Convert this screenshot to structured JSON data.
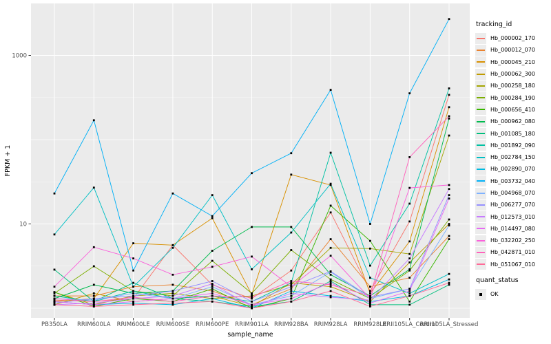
{
  "figure": {
    "background": "#FFFFFF",
    "panel_background": "#EBEBEB",
    "grid_color": "#FFFFFF",
    "tick_label_color": "#4D4D4D",
    "axis_title_color": "#000000"
  },
  "y_axis": {
    "title": "FPKM + 1",
    "scale": "log10",
    "major_ticks": [
      10,
      1000
    ],
    "major_tick_labels": [
      "10",
      "1000"
    ],
    "minor_gridlines": [
      1,
      100
    ]
  },
  "x_axis": {
    "title": "sample_name"
  },
  "legend": {
    "tracking_title": "tracking_id",
    "quant_title": "quant_status",
    "quant_item_label": "OK"
  },
  "chart_data": {
    "type": "line",
    "title": "",
    "xlabel": "sample_name",
    "ylabel": "FPKM + 1",
    "y_scale": "log10",
    "ylim": [
      1,
      4000
    ],
    "grid": true,
    "legend_position": "right",
    "point_shape": "filled-black-square (quant_status = OK)",
    "categories": [
      "PB350LA",
      "RRIM600LA",
      "RRIM600LE",
      "RRIM600SE",
      "RRIM600PE",
      "RRIM901LA",
      "RRIM928BA",
      "RRIM928LA",
      "RRIM928LE",
      "RRII105LA_Control",
      "RRII105LA_Stressed"
    ],
    "series": [
      {
        "name": "Hb_000002_170",
        "color": "#F8766D",
        "values": [
          1.25,
          1.2,
          1.3,
          5.6,
          1.9,
          1.3,
          2.8,
          13.7,
          1.6,
          10.7,
          340
        ]
      },
      {
        "name": "Hb_000012_070",
        "color": "#EA8331",
        "values": [
          1.4,
          1.4,
          1.8,
          1.9,
          1.6,
          1.1,
          1.7,
          6.6,
          1.8,
          2.3,
          7.2
        ]
      },
      {
        "name": "Hb_000045_210",
        "color": "#D89000",
        "values": [
          1.2,
          1.3,
          5.9,
          5.6,
          11.7,
          1.45,
          38.5,
          29,
          1.5,
          6.2,
          243
        ]
      },
      {
        "name": "Hb_000062_300",
        "color": "#C09B00",
        "values": [
          1.1,
          1.5,
          1.2,
          1.3,
          1.4,
          1.05,
          2.0,
          1.8,
          1.2,
          3.5,
          10
        ]
      },
      {
        "name": "Hb_000258_180",
        "color": "#A3A500",
        "values": [
          1.55,
          1.1,
          1.4,
          1.5,
          1.3,
          1.4,
          1.9,
          5.2,
          5.1,
          4.4,
          112
        ]
      },
      {
        "name": "Hb_000284_190",
        "color": "#7CAE00",
        "values": [
          1.5,
          3.15,
          1.6,
          1.4,
          3.65,
          1.5,
          4.9,
          2.2,
          1.3,
          2.8,
          11.3
        ]
      },
      {
        "name": "Hb_000656_410",
        "color": "#39B600",
        "values": [
          1.55,
          1.05,
          1.3,
          1.2,
          1.7,
          1.0,
          1.3,
          16.5,
          6.3,
          1.2,
          6.6
        ]
      },
      {
        "name": "Hb_000962_080",
        "color": "#00BB4E",
        "values": [
          1.3,
          1.9,
          1.5,
          1.6,
          4.8,
          9.2,
          9.2,
          2.5,
          1.4,
          2.9,
          178
        ]
      },
      {
        "name": "Hb_001085_180",
        "color": "#00BF7D",
        "values": [
          2.87,
          1.2,
          2.0,
          1.3,
          1.2,
          1.05,
          1.2,
          2.1,
          1.1,
          1.1,
          1.9
        ]
      },
      {
        "name": "Hb_001892_090",
        "color": "#00C1A3",
        "values": [
          1.4,
          1.2,
          1.6,
          1.3,
          1.4,
          1.2,
          2.0,
          70,
          3.2,
          17.4,
          406
        ]
      },
      {
        "name": "Hb_002784_150",
        "color": "#00BFC4",
        "values": [
          7.5,
          27,
          1.8,
          5.2,
          22,
          2.9,
          7.9,
          30,
          2.3,
          1.5,
          2.55
        ]
      },
      {
        "name": "Hb_002890_070",
        "color": "#00BAE0",
        "values": [
          1.2,
          1.1,
          1.15,
          1.1,
          1.3,
          1.0,
          1.6,
          1.4,
          1.2,
          1.4,
          2.2
        ]
      },
      {
        "name": "Hb_003732_040",
        "color": "#00B0F6",
        "values": [
          23,
          170,
          2.8,
          23,
          12.4,
          40,
          69,
          390,
          10,
          355,
          2700
        ]
      },
      {
        "name": "Hb_004968_070",
        "color": "#7FB2FF",
        "values": [
          1.3,
          1.25,
          1.5,
          1.3,
          1.8,
          1.1,
          1.4,
          2.7,
          1.3,
          1.7,
          9.6
        ]
      },
      {
        "name": "Hb_006277_070",
        "color": "#9590FF",
        "values": [
          1.15,
          1.3,
          1.4,
          1.6,
          2.1,
          1.2,
          1.8,
          2.74,
          1.35,
          1.7,
          22
        ]
      },
      {
        "name": "Hb_012573_010",
        "color": "#C77CFF",
        "values": [
          1.1,
          1.15,
          1.3,
          1.4,
          1.95,
          1.05,
          1.5,
          1.35,
          1.25,
          3.9,
          26
        ]
      },
      {
        "name": "Hb_014497_080",
        "color": "#E76BF3",
        "values": [
          1.2,
          1.1,
          1.2,
          1.3,
          1.5,
          1.1,
          1.3,
          2.0,
          1.15,
          1.6,
          20
        ]
      },
      {
        "name": "Hb_032202_250",
        "color": "#FA62DB",
        "values": [
          1.8,
          5.3,
          3.9,
          2.5,
          3.1,
          4.1,
          1.8,
          4.2,
          1.3,
          26.8,
          29
        ]
      },
      {
        "name": "Hb_042871_010",
        "color": "#FF62BC",
        "values": [
          1.3,
          1.2,
          1.35,
          1.2,
          1.4,
          1.35,
          2.1,
          1.9,
          1.4,
          62,
          190
        ]
      },
      {
        "name": "Hb_051067_010",
        "color": "#FF6A98",
        "values": [
          1.1,
          1.05,
          1.1,
          1.15,
          1.2,
          1.0,
          1.2,
          1.6,
          1.05,
          1.4,
          2.0
        ]
      }
    ]
  }
}
